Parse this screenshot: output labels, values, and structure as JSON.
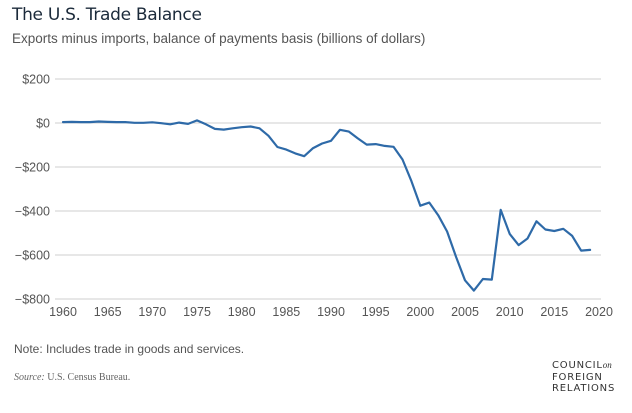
{
  "header": {
    "title": "The U.S. Trade Balance",
    "subtitle": "Exports minus imports, balance of payments basis (billions of dollars)"
  },
  "footer": {
    "note": "Note: Includes trade in goods and services.",
    "source_label": "Source:",
    "source_text": " U.S. Census Bureau.",
    "logo_line1": "COUNCIL",
    "logo_on": "on",
    "logo_line2": "FOREIGN",
    "logo_line3": "RELATIONS"
  },
  "chart_data": {
    "type": "line",
    "title": "The U.S. Trade Balance",
    "subtitle": "Exports minus imports, balance of payments basis (billions of dollars)",
    "xlabel": "",
    "ylabel": "",
    "ylim": [
      -800,
      200
    ],
    "xlim": [
      1960,
      2020
    ],
    "grid": "horizontal",
    "legend": "none",
    "line_color": "#2e6aa8",
    "y_ticks": [
      "$200",
      "$0",
      "−$200",
      "−$400",
      "−$600",
      "−$800"
    ],
    "y_tick_values": [
      200,
      0,
      -200,
      -400,
      -600,
      -800
    ],
    "x_ticks": [
      "1960",
      "1965",
      "1970",
      "1975",
      "1980",
      "1985",
      "1990",
      "1995",
      "2000",
      "2005",
      "2010",
      "2015",
      "2020"
    ],
    "x_tick_values": [
      1960,
      1965,
      1970,
      1975,
      1980,
      1985,
      1990,
      1995,
      2000,
      2005,
      2010,
      2015,
      2020
    ],
    "series": [
      {
        "name": "Trade balance",
        "x": [
          1960,
          1961,
          1962,
          1963,
          1964,
          1965,
          1966,
          1967,
          1968,
          1969,
          1970,
          1971,
          1972,
          1973,
          1974,
          1975,
          1976,
          1977,
          1978,
          1979,
          1980,
          1981,
          1982,
          1983,
          1984,
          1985,
          1986,
          1987,
          1988,
          1989,
          1990,
          1991,
          1992,
          1993,
          1994,
          1995,
          1996,
          1997,
          1998,
          1999,
          2000,
          2001,
          2002,
          2003,
          2004,
          2005,
          2006,
          2007,
          2008,
          2009,
          2010,
          2011,
          2012,
          2013,
          2014,
          2015,
          2016,
          2017,
          2018,
          2019
        ],
        "values": [
          4,
          5,
          4,
          4,
          7,
          5,
          4,
          4,
          1,
          1,
          3,
          -1,
          -6,
          2,
          -4,
          12,
          -6,
          -27,
          -30,
          -24,
          -19,
          -16,
          -24,
          -58,
          -109,
          -121,
          -138,
          -151,
          -114,
          -93,
          -81,
          -31,
          -39,
          -70,
          -98,
          -96,
          -104,
          -108,
          -166,
          -264,
          -376,
          -362,
          -419,
          -493,
          -609,
          -715,
          -762,
          -709,
          -712,
          -395,
          -504,
          -555,
          -525,
          -447,
          -484,
          -491,
          -481,
          -513,
          -580,
          -577
        ]
      }
    ]
  }
}
